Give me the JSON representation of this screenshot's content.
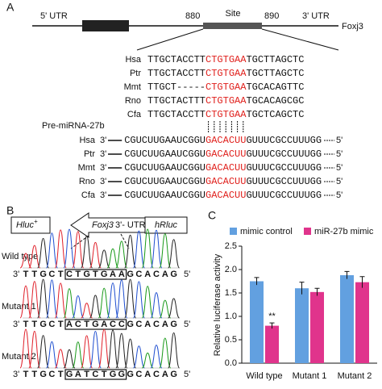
{
  "panel_a": {
    "label": "A",
    "gene": {
      "utr5": "5' UTR",
      "start": "880",
      "site": "Site",
      "end": "890",
      "utr3": "3' UTR",
      "name": "Foxj3"
    },
    "alignment": [
      {
        "species": "Hsa",
        "left": "TTGCTACCTT",
        "site": "CTGTGAA",
        "right": "TGCTTAGCTC"
      },
      {
        "species": "Ptr",
        "left": "TTGCTACCTT",
        "site": "CTGTGAA",
        "right": "TGCTTAGCTC"
      },
      {
        "species": "Mmt",
        "left": "TTGCT-----",
        "site": "CTGTGAA",
        "right": "TGCACAGTTC"
      },
      {
        "species": "Rno",
        "left": "TTGCTACTTT",
        "site": "CTGTGAA",
        "right": "TGCACAGCGC"
      },
      {
        "species": "Cfa",
        "left": "TTGCTACCTT",
        "site": "CTGTGAA",
        "right": "TGCTCAGCTC"
      }
    ],
    "mirna_label": "Pre-miRNA-27b",
    "mirna": [
      {
        "species": "Hsa",
        "end3": "3'",
        "left": "CGUCUUGAAUCGGU",
        "site": "GACACUU",
        "right": "GUUUCGCCUUUGG",
        "end5": "5'"
      },
      {
        "species": "Ptr",
        "end3": "3'",
        "left": "CGUCUUGAAUCGGU",
        "site": "GACACUU",
        "right": "GUUUCGCCUUUGG",
        "end5": "5'"
      },
      {
        "species": "Mmt",
        "end3": "3'",
        "left": "CGUCUUGAAUCGGU",
        "site": "GACACUU",
        "right": "GUUUCGCCUUUGG",
        "end5": "5'"
      },
      {
        "species": "Rno",
        "end3": "3'",
        "left": "CGUCUUGAAUCGGU",
        "site": "GACACUU",
        "right": "GUUUCGCCUUUGG",
        "end5": "5'"
      },
      {
        "species": "Cfa",
        "end3": "3'",
        "left": "CGUCUUGAAUCGGU",
        "site": "GACACUU",
        "right": "GUUUCGCCUUUGG",
        "end5": "5'"
      }
    ]
  },
  "panel_b": {
    "label": "B",
    "construct": {
      "hluc": "Hluc",
      "hluc_sup": "+",
      "gene": "Foxj3",
      "utr": "3'- UTR",
      "hrluc": "hRluc"
    },
    "traces": [
      {
        "name": "Wild type",
        "end3": "3'",
        "bases": [
          "T",
          "T",
          "G",
          "C",
          "T",
          "C",
          "T",
          "G",
          "T",
          "G",
          "A",
          "A",
          "G",
          "C",
          "A",
          "C",
          "A",
          "G"
        ],
        "end5": "5'"
      },
      {
        "name": "Mutant 1",
        "end3": "3'",
        "bases": [
          "T",
          "T",
          "G",
          "C",
          "T",
          "A",
          "C",
          "T",
          "G",
          "A",
          "C",
          "C",
          "G",
          "C",
          "A",
          "C",
          "A",
          "G"
        ],
        "end5": "5'"
      },
      {
        "name": "Mutant 2",
        "end3": "3'",
        "bases": [
          "T",
          "T",
          "G",
          "C",
          "T",
          "G",
          "A",
          "T",
          "C",
          "T",
          "G",
          "G",
          "G",
          "C",
          "A",
          "C",
          "A",
          "G"
        ],
        "end5": "5'"
      }
    ]
  },
  "panel_c": {
    "label": "C"
  },
  "chart_data": {
    "type": "bar",
    "ylabel": "Relative luciferase activity",
    "categories": [
      "Wild type",
      "Mutant 1",
      "Mutant 2"
    ],
    "series": [
      {
        "name": "mimic control",
        "color": "#62a0e0",
        "values": [
          1.75,
          1.6,
          1.88
        ],
        "errors": [
          0.08,
          0.13,
          0.08
        ]
      },
      {
        "name": "miR-27b mimic",
        "color": "#e0348c",
        "values": [
          0.8,
          1.52,
          1.73
        ],
        "errors": [
          0.06,
          0.08,
          0.12
        ]
      }
    ],
    "ylim": [
      0,
      2.5
    ],
    "yticks": [
      {
        "value": 0,
        "label": "0.0"
      },
      {
        "value": 0.5,
        "label": "0.5"
      },
      {
        "value": 1,
        "label": "1.0"
      },
      {
        "value": 1.5,
        "label": "1.5"
      },
      {
        "value": 2,
        "label": "2.0"
      },
      {
        "value": 2.5,
        "label": "2.5"
      }
    ],
    "annotations": [
      {
        "text": "**"
      }
    ],
    "legend": "top"
  }
}
